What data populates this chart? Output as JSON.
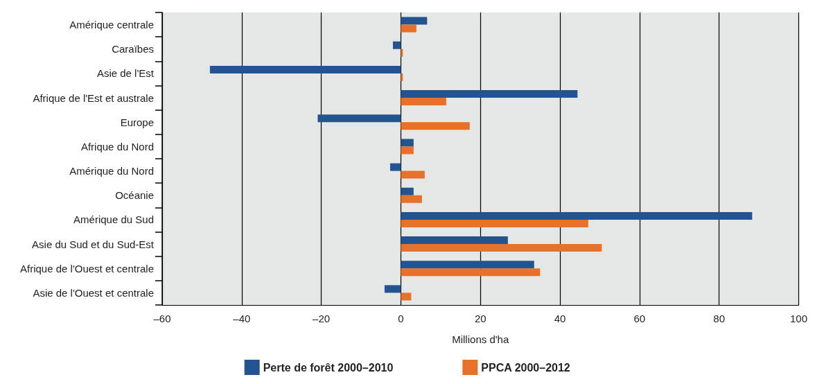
{
  "chart_data": {
    "type": "bar",
    "orientation": "horizontal",
    "xlabel": "Millions d'ha",
    "categories": [
      "Amérique centrale",
      "Caraïbes",
      "Asie de l'Est",
      "Afrique de l'Est et australe",
      "Europe",
      "Afrique du Nord",
      "Amérique du Nord",
      "Océanie",
      "Amérique du Sud",
      "Asie du Sud et du Sud-Est",
      "Afrique de l'Ouest et centrale",
      "Asie de l'Ouest et centrale"
    ],
    "series": [
      {
        "name": "Perte de forêt 2000–2010",
        "color": "#24548f",
        "values": [
          6.6,
          -2,
          -48,
          44.4,
          -20.9,
          3.2,
          -2.7,
          3.2,
          88.3,
          26.9,
          33.5,
          -4.1
        ]
      },
      {
        "name": "PPCA 2000–2012",
        "color": "#e5712a",
        "values": [
          3.9,
          0.5,
          0.5,
          11.4,
          17.3,
          3.2,
          6,
          5.3,
          47.1,
          50.5,
          35,
          2.6
        ]
      }
    ],
    "xlim": [
      -60,
      100
    ],
    "xticks": [
      {
        "value": -60,
        "label": "–60"
      },
      {
        "value": -40,
        "label": "–40"
      },
      {
        "value": -20,
        "label": "–20"
      },
      0,
      20,
      40,
      60,
      80,
      100
    ],
    "grid": "x",
    "legend": "bottom"
  }
}
